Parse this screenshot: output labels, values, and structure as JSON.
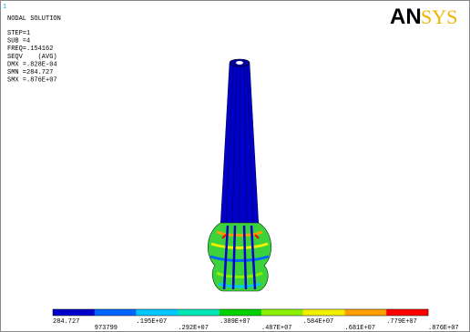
{
  "corner_label": "1",
  "title": "NODAL SOLUTION",
  "info": [
    "STEP=1",
    "SUB =4",
    "FREQ=.154162",
    "SEQV    (AVG)",
    "DMX =.828E-04",
    "SMN =284.727",
    "SMX =.876E+07"
  ],
  "logo": {
    "left": "AN",
    "right": "SYS"
  },
  "legend": {
    "colors": [
      "#0000c8",
      "#0066ff",
      "#00c8ff",
      "#00e6b4",
      "#00d200",
      "#8cf000",
      "#f0f000",
      "#ffa000",
      "#ff0000"
    ],
    "upper_labels": [
      "284.727",
      ".195E+07",
      ".389E+07",
      ".584E+07",
      ".779E+07"
    ],
    "lower_labels": [
      "973799",
      ".292E+07",
      ".487E+07",
      ".681E+07",
      ".876E+07"
    ]
  }
}
